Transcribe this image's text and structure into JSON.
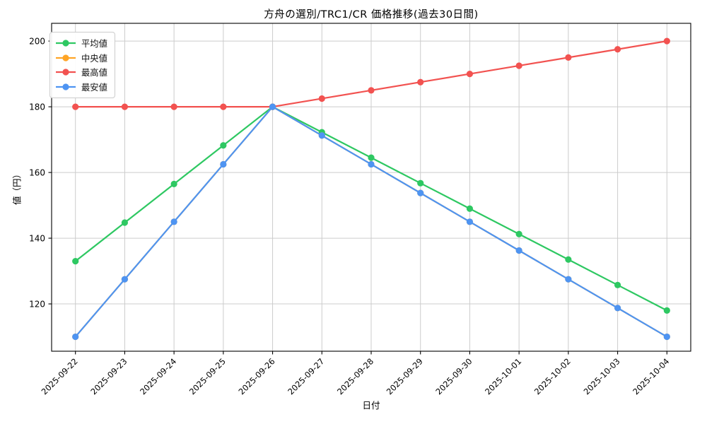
{
  "chart_data": {
    "type": "line",
    "title": "方舟の選別/TRC1/CR 価格推移(過去30日間)",
    "xlabel": "日付",
    "ylabel": "値（円）",
    "grid": true,
    "legend_position": "upper-left",
    "x": [
      "2025-09-22",
      "2025-09-23",
      "2025-09-24",
      "2025-09-25",
      "2025-09-26",
      "2025-09-27",
      "2025-09-28",
      "2025-09-29",
      "2025-09-30",
      "2025-10-01",
      "2025-10-02",
      "2025-10-03",
      "2025-10-04"
    ],
    "yticks": [
      120,
      140,
      160,
      180,
      200
    ],
    "ylim": [
      105.6,
      205.4
    ],
    "series": [
      {
        "id": "average",
        "name": "平均値",
        "color": "#2ec862",
        "values": [
          133,
          144.75,
          156.5,
          168.25,
          180,
          172.25,
          164.5,
          156.75,
          149,
          141.25,
          133.5,
          125.75,
          118
        ]
      },
      {
        "id": "median",
        "name": "中央値",
        "color": "#ffa526",
        "values": [
          110,
          127.5,
          145,
          162.5,
          180,
          171.25,
          162.5,
          153.75,
          145,
          136.25,
          127.5,
          118.75,
          110
        ]
      },
      {
        "id": "max",
        "name": "最高値",
        "color": "#f25250",
        "values": [
          180,
          180,
          180,
          180,
          180,
          182.5,
          185,
          187.5,
          190,
          192.5,
          195,
          197.5,
          200
        ]
      },
      {
        "id": "min",
        "name": "最安値",
        "color": "#4e94f2",
        "values": [
          110,
          127.5,
          145,
          162.5,
          180,
          171.25,
          162.5,
          153.75,
          145,
          136.25,
          127.5,
          118.75,
          110
        ]
      }
    ],
    "style": {
      "grid_color": "#cccccc",
      "spine_color": "#000000",
      "background": "#ffffff",
      "line_width": 2.2,
      "marker_radius": 4.6
    }
  }
}
